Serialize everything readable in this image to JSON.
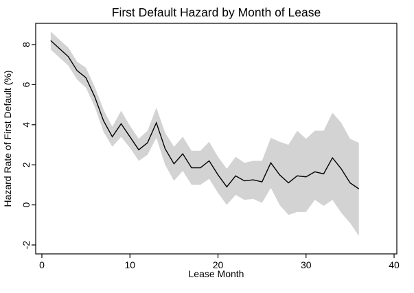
{
  "figure": {
    "title": "First Default Hazard by Month of Lease",
    "xlabel": "Lease Month",
    "ylabel": "Hazard Rate of First Default (%)"
  },
  "chart_data": {
    "type": "line",
    "title": "First Default Hazard by Month of Lease",
    "xlabel": "Lease Month",
    "ylabel": "Hazard Rate of First Default (%)",
    "x": [
      1,
      2,
      3,
      4,
      5,
      6,
      7,
      8,
      9,
      10,
      11,
      12,
      13,
      14,
      15,
      16,
      17,
      18,
      19,
      20,
      21,
      22,
      23,
      24,
      25,
      26,
      27,
      28,
      29,
      30,
      31,
      32,
      33,
      34,
      35,
      36
    ],
    "series": [
      {
        "name": "hazard_rate",
        "values": [
          8.2,
          7.8,
          7.4,
          6.7,
          6.35,
          5.4,
          4.2,
          3.4,
          4.05,
          3.4,
          2.75,
          3.1,
          4.1,
          2.8,
          2.05,
          2.55,
          1.85,
          1.85,
          2.2,
          1.5,
          0.9,
          1.45,
          1.2,
          1.25,
          1.15,
          2.1,
          1.5,
          1.1,
          1.45,
          1.4,
          1.65,
          1.55,
          2.35,
          1.8,
          1.1,
          0.8
        ]
      },
      {
        "name": "ci_upper",
        "values": [
          8.65,
          8.25,
          7.85,
          7.15,
          6.85,
          5.9,
          4.75,
          3.9,
          4.7,
          3.95,
          3.3,
          3.7,
          4.85,
          3.6,
          2.9,
          3.4,
          2.7,
          2.7,
          3.15,
          2.4,
          1.8,
          2.4,
          2.1,
          2.2,
          2.2,
          3.35,
          3.15,
          3.0,
          3.7,
          3.3,
          3.7,
          3.7,
          4.6,
          4.1,
          3.3,
          3.1
        ]
      },
      {
        "name": "ci_lower",
        "values": [
          7.75,
          7.35,
          6.95,
          6.25,
          5.85,
          4.9,
          3.65,
          2.9,
          3.4,
          2.85,
          2.2,
          2.5,
          3.35,
          2.0,
          1.2,
          1.7,
          1.0,
          1.0,
          1.3,
          0.6,
          0.0,
          0.5,
          0.25,
          0.3,
          0.1,
          0.85,
          0.0,
          -0.5,
          -0.35,
          -0.35,
          0.25,
          -0.05,
          0.25,
          -0.4,
          -0.9,
          -1.55
        ]
      }
    ],
    "xticks": [
      0,
      10,
      20,
      30,
      40
    ],
    "yticks": [
      -2,
      0,
      2,
      4,
      6,
      8
    ],
    "xlim": [
      -0.7,
      40.3
    ],
    "ylim": [
      -2.45,
      9.05
    ],
    "grid": false,
    "legend": "none",
    "band_series": {
      "upper": "ci_upper",
      "lower": "ci_lower"
    },
    "colors": {
      "line": "#000000",
      "band": "#d3d3d3",
      "background": "#ffffff",
      "frame": "#000000"
    }
  }
}
